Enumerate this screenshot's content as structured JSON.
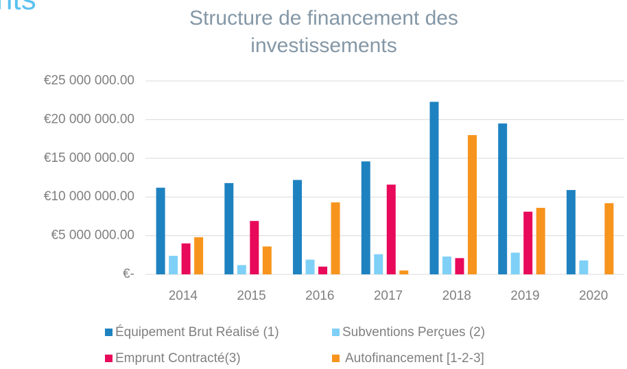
{
  "chart_data": {
    "type": "bar",
    "annotation": "nts",
    "title": [
      "Structure de financement des",
      "investissements"
    ],
    "categories": [
      "2014",
      "2015",
      "2016",
      "2017",
      "2018",
      "2019",
      "2020"
    ],
    "series": [
      {
        "name": "Équipement Brut Réalisé (1)",
        "color": "#1f82c0",
        "values": [
          11200000,
          11800000,
          12200000,
          14600000,
          22300000,
          19500000,
          10900000
        ]
      },
      {
        "name": "Subventions Perçues (2)",
        "color": "#7fd0f7",
        "values": [
          2400000,
          1200000,
          1900000,
          2600000,
          2300000,
          2800000,
          1800000
        ]
      },
      {
        "name": "Emprunt Contracté(3)",
        "color": "#e8095a",
        "values": [
          4000000,
          6900000,
          1000000,
          11600000,
          2100000,
          8100000,
          null
        ]
      },
      {
        "name": "Autofinancement [1-2-3]",
        "color": "#f7941d",
        "values": [
          4800000,
          3600000,
          9300000,
          500000,
          18000000,
          8600000,
          9200000
        ]
      }
    ],
    "ylim": [
      0,
      25000000
    ],
    "yticks": [
      {
        "value": 0,
        "label": "€-"
      },
      {
        "value": 5000000,
        "label": "€5 000 000.00"
      },
      {
        "value": 10000000,
        "label": "€10 000 000.00"
      },
      {
        "value": 15000000,
        "label": "€15 000 000.00"
      },
      {
        "value": 20000000,
        "label": "€20 000 000.00"
      },
      {
        "value": 25000000,
        "label": "€25 000 000.00"
      }
    ],
    "grid": true,
    "legend": "bottom"
  }
}
